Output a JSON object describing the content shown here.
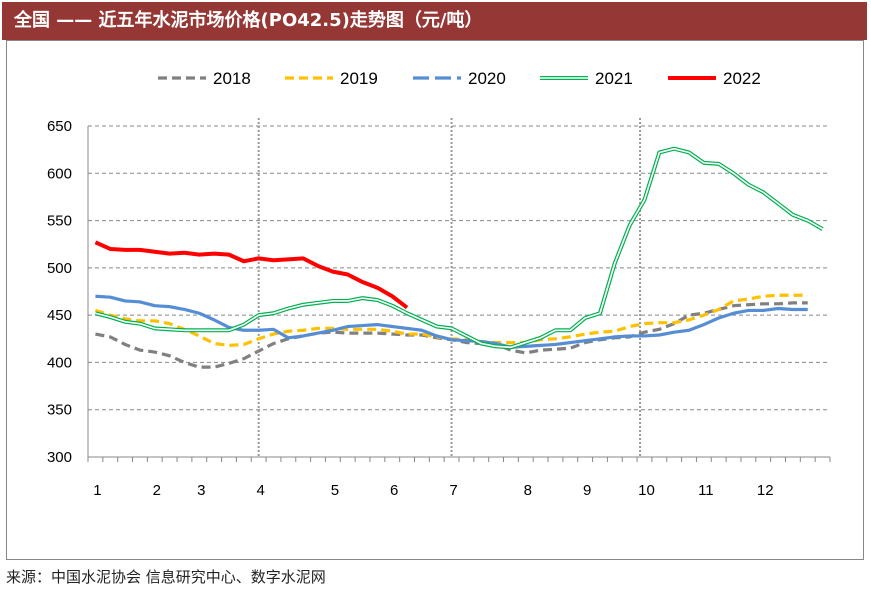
{
  "header": {
    "title": "全国 —— 近五年水泥市场价格(PO42.5)走势图（元/吨）"
  },
  "source": "来源：中国水泥协会 信息研究中心、数字水泥网",
  "chart_data": {
    "type": "line",
    "title": "全国 —— 近五年水泥市场价格(PO42.5)走势图（元/吨）",
    "xlabel": "",
    "ylabel": "",
    "ylim": [
      300,
      650
    ],
    "yticks": [
      300,
      350,
      400,
      450,
      500,
      550,
      600,
      650
    ],
    "x_unit": "week",
    "weeks": 50,
    "month_labels": [
      {
        "label": "1",
        "week": 1
      },
      {
        "label": "2",
        "week": 5
      },
      {
        "label": "3",
        "week": 8
      },
      {
        "label": "4",
        "week": 12
      },
      {
        "label": "5",
        "week": 17
      },
      {
        "label": "6",
        "week": 21
      },
      {
        "label": "7",
        "week": 25
      },
      {
        "label": "8",
        "week": 30
      },
      {
        "label": "9",
        "week": 34
      },
      {
        "label": "10",
        "week": 38
      },
      {
        "label": "11",
        "week": 42
      },
      {
        "label": "12",
        "week": 46
      }
    ],
    "grid": true,
    "legend_position": "top",
    "series": [
      {
        "name": "2018",
        "color": "#808080",
        "style": "dash",
        "values": [
          430,
          427,
          419,
          413,
          411,
          407,
          400,
          395,
          395,
          399,
          404,
          412,
          420,
          425,
          428,
          431,
          432,
          431,
          431,
          431,
          430,
          429,
          429,
          426,
          424,
          421,
          420,
          419,
          413,
          410,
          413,
          414,
          415,
          421,
          424,
          426,
          427,
          432,
          435,
          441,
          450,
          452,
          456,
          460,
          461,
          462,
          462,
          463,
          463
        ]
      },
      {
        "name": "2019",
        "color": "#FFC000",
        "style": "dash",
        "values": [
          455,
          450,
          446,
          444,
          444,
          441,
          435,
          428,
          420,
          418,
          419,
          425,
          430,
          433,
          434,
          436,
          436,
          435,
          435,
          435,
          433,
          430,
          430,
          427,
          425,
          424,
          422,
          421,
          421,
          421,
          424,
          425,
          427,
          430,
          432,
          433,
          438,
          441,
          442,
          442,
          445,
          450,
          456,
          465,
          467,
          470,
          471,
          471,
          471
        ]
      },
      {
        "name": "2020",
        "color": "#558ED5",
        "style": "longdash",
        "values": [
          470,
          469,
          465,
          464,
          460,
          459,
          456,
          452,
          445,
          437,
          434,
          434,
          435,
          426,
          428,
          431,
          434,
          438,
          439,
          440,
          438,
          436,
          434,
          428,
          424,
          423,
          422,
          420,
          416,
          417,
          418,
          419,
          421,
          423,
          425,
          427,
          428,
          428,
          429,
          432,
          434,
          440,
          447,
          452,
          455,
          455,
          457,
          456,
          456
        ]
      },
      {
        "name": "2021",
        "color": "#00B050",
        "style": "double",
        "values": [
          452,
          448,
          443,
          441,
          436,
          435,
          434,
          434,
          434,
          434,
          440,
          450,
          452,
          457,
          461,
          463,
          465,
          465,
          468,
          466,
          460,
          452,
          445,
          438,
          436,
          428,
          420,
          417,
          416,
          421,
          426,
          434,
          434,
          447,
          452,
          505,
          545,
          572,
          622,
          626,
          622,
          611,
          610,
          600,
          588,
          580,
          568,
          556,
          550,
          541
        ]
      },
      {
        "name": "2022",
        "color": "#FF0000",
        "style": "solid",
        "values": [
          527,
          520,
          519,
          519,
          517,
          515,
          516,
          514,
          515,
          514,
          507,
          510,
          508,
          509,
          510,
          502,
          496,
          493,
          485,
          479,
          470,
          458
        ]
      }
    ]
  }
}
